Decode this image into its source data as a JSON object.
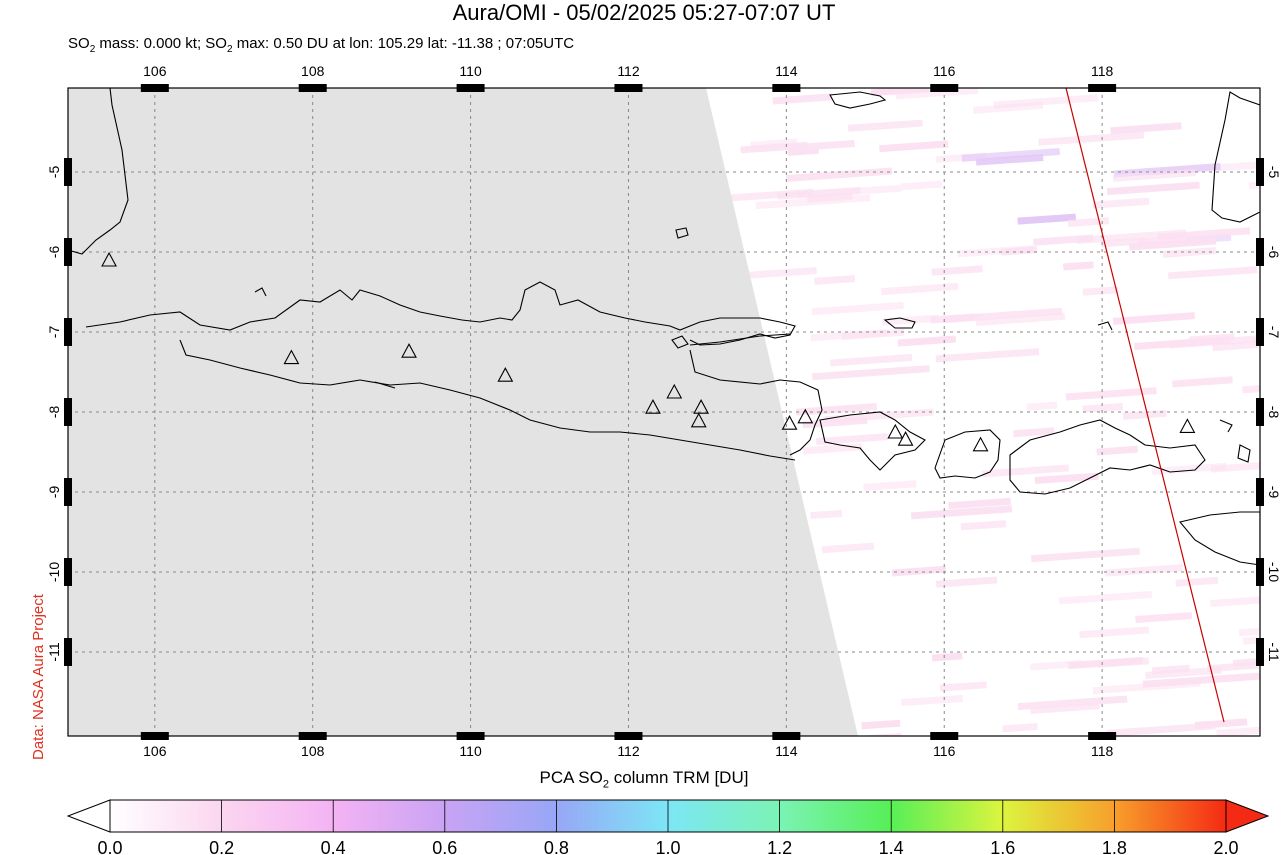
{
  "header": {
    "title": "Aura/OMI - 05/02/2025 05:27-07:07 UT",
    "subtitle_prefix": "SO",
    "subtitle_sub1": "2",
    "subtitle_mid": " mass: 0.000 kt; SO",
    "subtitle_sub2": "2",
    "subtitle_rest": " max: 0.50 DU at lon: 105.29 lat: -11.38 ; 07:05UTC"
  },
  "map": {
    "lon_ticks": [
      "106",
      "108",
      "110",
      "112",
      "114",
      "116",
      "118"
    ],
    "lat_ticks": [
      "-5",
      "-6",
      "-7",
      "-8",
      "-9",
      "-10",
      "-11"
    ],
    "lon_range": [
      104.9,
      120.0
    ],
    "lat_range": [
      -12.05,
      -3.95
    ],
    "colors": {
      "no_data": "#e3e3e3",
      "coast": "#000000",
      "orbit_line": "#cc0000",
      "grid": "#888888"
    }
  },
  "credit": "Data: NASA Aura Project",
  "colorbar": {
    "title_pre": "PCA SO",
    "title_sub": "2",
    "title_post": " column TRM [DU]",
    "labels": [
      "0.0",
      "0.2",
      "0.4",
      "0.6",
      "0.8",
      "1.0",
      "1.2",
      "1.4",
      "1.6",
      "1.8",
      "2.0"
    ]
  }
}
